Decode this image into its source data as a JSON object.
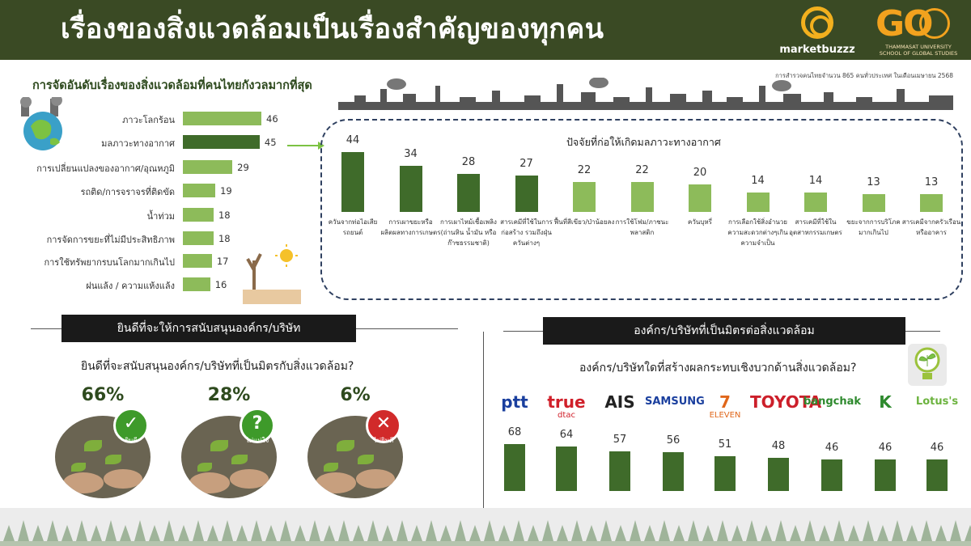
{
  "header": {
    "title": "เรื่องของสิ่งแวดล้อมเป็นเรื่องสำคัญของทุกคน",
    "logo_marketbuzzz": "marketbuzzz",
    "logo_go": "GO",
    "logo_go_sub1": "THAMMASAT UNIVERSITY",
    "logo_go_sub2": "SCHOOL OF GLOBAL STUDIES"
  },
  "survey_note": "การสำรวจคนไทยจำนวน 865 คนทั่วประเทศ ในเดือนเมษายน  2568",
  "colors": {
    "dark_green": "#3f6b2a",
    "light_green": "#8dbb5a",
    "header_bg": "#3a4a24",
    "title_green": "#2e4a1e",
    "dashed_border": "#2f4060"
  },
  "chart_data": [
    {
      "type": "bar",
      "orientation": "horizontal",
      "title": "การจัดอันดับเรื่องของสิ่งแวดล้อมที่คนไทยกังวลมากที่สุด",
      "categories": [
        "ภาวะโลกร้อน",
        "มลภาวะทางอากาศ",
        "การเปลี่ยนแปลงของอากาศ/อุณหภูมิ",
        "รถติด/การจราจรที่ติดขัด",
        "น้ำท่วม",
        "การจัดการขยะที่ไม่มีประสิทธิภาพ",
        "การใช้ทรัพยากรบนโลกมากเกินไป",
        "ฝนแล้ง / ความแห้งแล้ง"
      ],
      "values": [
        46,
        45,
        29,
        19,
        18,
        18,
        17,
        16
      ],
      "highlight_index": 1
    },
    {
      "type": "bar",
      "orientation": "vertical",
      "title": "ปัจจัยที่ก่อให้เกิดมลภาวะทางอากาศ",
      "categories": [
        "ควันจากท่อไอเสียรถยนต์",
        "การเผาขยะหรือผลิตผลทางการเกษตร",
        "การเผาไหม้เชื้อเพลิง (ถ่านหิน น้ำมัน หรือก๊าซธรรมชาติ)",
        "สารเคมีที่ใช้ในการก่อสร้าง รวมถึงฝุ่นควันต่างๆ",
        "ฟื้นที่สีเขียว/ป่าน้อยลง",
        "การใช้โฟม/ภาชนะพลาสติก",
        "ควันบุหรี่",
        "การเลือกใช้สิ่งอำนวยความสะดวกต่างๆเกินความจำเป็น",
        "สารเคมีที่ใช้ในอุตสาหกรรมเกษตร",
        "ขยะจากการบริโภคมากเกินไป",
        "สารเคมีจากครัวเรือนหรืออาคาร"
      ],
      "values": [
        44,
        34,
        28,
        27,
        22,
        22,
        20,
        14,
        14,
        13,
        13
      ],
      "dark_count": 4
    },
    {
      "type": "bar",
      "orientation": "vertical",
      "title": "องค์กร/บริษัทที่เป็นมิตรต่อสิ่งแวดล้อม",
      "categories": [
        "ptt",
        "true dtac",
        "AIS",
        "SAMSUNG",
        "7-ELEVEN",
        "TOYOTA",
        "bangchak",
        "Kasikorn",
        "Lotus's"
      ],
      "values": [
        68,
        64,
        57,
        56,
        51,
        48,
        46,
        46,
        46
      ]
    }
  ],
  "support": {
    "section_title": "ยินดีที่จะให้การสนับสนุนองค์กร/บริษัท",
    "question": "ยินดีที่จะสนับสนุนองค์กร/บริษัทที่เป็นมิตรกับสิ่งแวดล้อม?",
    "options": [
      {
        "pct": "66%",
        "caption": "ยินดี",
        "symbol": "✓",
        "color": "#3e9a2a"
      },
      {
        "pct": "28%",
        "caption": "ไม่แน่ใจ",
        "symbol": "?",
        "color": "#3e9a2a"
      },
      {
        "pct": "6%",
        "caption": "ไม่ยินดี",
        "symbol": "✕",
        "color": "#d12a2a"
      }
    ]
  },
  "org": {
    "section_title": "องค์กร/บริษัทที่เป็นมิตรต่อสิ่งแวดล้อม",
    "question": "องค์กร/บริษัทใดที่สร้างผลกระทบเชิงบวกด้านสิ่งแวดล้อม?",
    "brands": [
      {
        "text": "ptt",
        "color": "#1a3f9e"
      },
      {
        "text": "true",
        "sub": "dtac",
        "color": "#d0202a"
      },
      {
        "text": "AIS",
        "color": "#222222"
      },
      {
        "text": "SAMSUNG",
        "color": "#1a3f9e"
      },
      {
        "text": "7",
        "sub": "ELEVEN",
        "color": "#e0661a"
      },
      {
        "text": "TOYOTA",
        "color": "#cc1f2a"
      },
      {
        "text": "bangchak",
        "color": "#2e8a2e"
      },
      {
        "text": "K",
        "color": "#2e8a2e"
      },
      {
        "text": "Lotus's",
        "color": "#6cb33f"
      }
    ]
  }
}
